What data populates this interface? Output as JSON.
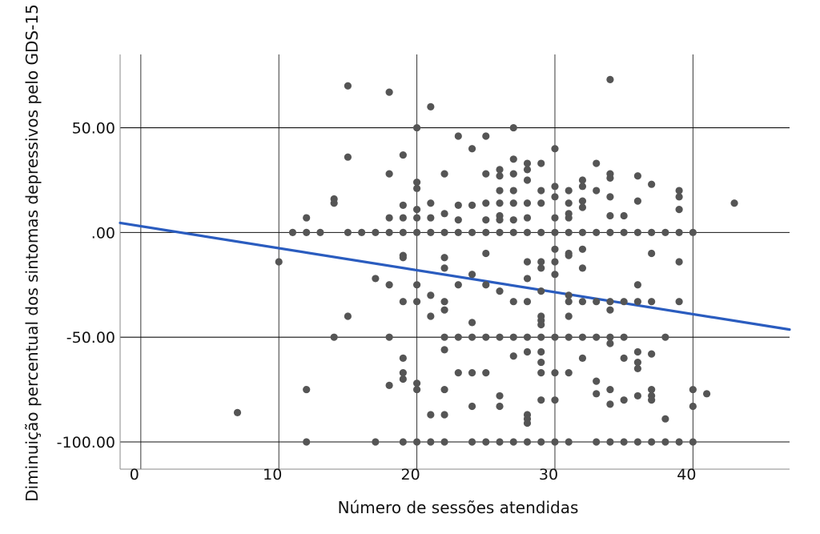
{
  "chart_data": {
    "type": "scatter",
    "title": "",
    "xlabel": "Número de sessões atendidas",
    "ylabel": "Diminuição percentual dos sintomas depressivos pelo GDS-15",
    "xlim": [
      -1.5,
      47
    ],
    "ylim": [
      -113,
      85
    ],
    "x_ticks": [
      0,
      10,
      20,
      30,
      40
    ],
    "x_tick_labels": [
      "0",
      "10",
      "20",
      "30",
      "40"
    ],
    "y_ticks": [
      50,
      0,
      -50,
      -100
    ],
    "y_tick_labels": [
      "50.00",
      ".00",
      "-50.00",
      "-100.00"
    ],
    "grid": true,
    "point_color": "#555555",
    "fit_line": {
      "color": "#2a5cbf",
      "intercept": 3.0,
      "slope": -1.05
    },
    "points": [
      [
        7,
        -86
      ],
      [
        10,
        -14
      ],
      [
        12,
        7
      ],
      [
        11,
        0
      ],
      [
        12,
        0
      ],
      [
        13,
        0
      ],
      [
        12,
        -75
      ],
      [
        12,
        -100
      ],
      [
        14,
        14
      ],
      [
        14,
        16
      ],
      [
        14,
        -50
      ],
      [
        15,
        70
      ],
      [
        15,
        36
      ],
      [
        15,
        0
      ],
      [
        15,
        -40
      ],
      [
        16,
        0
      ],
      [
        17,
        0
      ],
      [
        17,
        -22
      ],
      [
        17,
        -100
      ],
      [
        18,
        67
      ],
      [
        18,
        28
      ],
      [
        18,
        7
      ],
      [
        18,
        0
      ],
      [
        18,
        -25
      ],
      [
        18,
        -50
      ],
      [
        18,
        -73
      ],
      [
        19,
        37
      ],
      [
        19,
        13
      ],
      [
        19,
        7
      ],
      [
        19,
        0
      ],
      [
        19,
        -11
      ],
      [
        19,
        -12
      ],
      [
        19,
        -33
      ],
      [
        19,
        -60
      ],
      [
        19,
        -67
      ],
      [
        19,
        -70
      ],
      [
        19,
        -100
      ],
      [
        20,
        50
      ],
      [
        20,
        24
      ],
      [
        20,
        21
      ],
      [
        20,
        11
      ],
      [
        20,
        7
      ],
      [
        20,
        0
      ],
      [
        20,
        -25
      ],
      [
        20,
        -33
      ],
      [
        20,
        -72
      ],
      [
        20,
        -75
      ],
      [
        20,
        -100
      ],
      [
        21,
        60
      ],
      [
        21,
        14
      ],
      [
        21,
        7
      ],
      [
        21,
        0
      ],
      [
        21,
        -40
      ],
      [
        21,
        -30
      ],
      [
        21,
        -87
      ],
      [
        21,
        -100
      ],
      [
        22,
        28
      ],
      [
        22,
        9
      ],
      [
        22,
        0
      ],
      [
        22,
        -12
      ],
      [
        22,
        -17
      ],
      [
        22,
        -33
      ],
      [
        22,
        -37
      ],
      [
        22,
        -50
      ],
      [
        22,
        -56
      ],
      [
        22,
        -75
      ],
      [
        22,
        -87
      ],
      [
        22,
        -100
      ],
      [
        23,
        46
      ],
      [
        23,
        13
      ],
      [
        23,
        6
      ],
      [
        23,
        0
      ],
      [
        23,
        -25
      ],
      [
        23,
        -50
      ],
      [
        23,
        -67
      ],
      [
        24,
        40
      ],
      [
        24,
        13
      ],
      [
        24,
        0
      ],
      [
        24,
        -20
      ],
      [
        24,
        -43
      ],
      [
        24,
        -50
      ],
      [
        24,
        -67
      ],
      [
        24,
        -83
      ],
      [
        24,
        -100
      ],
      [
        25,
        46
      ],
      [
        25,
        28
      ],
      [
        25,
        14
      ],
      [
        25,
        6
      ],
      [
        25,
        0
      ],
      [
        25,
        -10
      ],
      [
        25,
        -25
      ],
      [
        25,
        -50
      ],
      [
        25,
        -67
      ],
      [
        25,
        -100
      ],
      [
        26,
        30
      ],
      [
        26,
        27
      ],
      [
        26,
        20
      ],
      [
        26,
        14
      ],
      [
        26,
        8
      ],
      [
        26,
        6
      ],
      [
        26,
        0
      ],
      [
        26,
        -28
      ],
      [
        26,
        -50
      ],
      [
        26,
        -78
      ],
      [
        26,
        -83
      ],
      [
        26,
        -100
      ],
      [
        27,
        50
      ],
      [
        27,
        35
      ],
      [
        27,
        28
      ],
      [
        27,
        20
      ],
      [
        27,
        14
      ],
      [
        27,
        6
      ],
      [
        27,
        0
      ],
      [
        27,
        -33
      ],
      [
        27,
        -50
      ],
      [
        27,
        -59
      ],
      [
        27,
        -100
      ],
      [
        28,
        33
      ],
      [
        28,
        30
      ],
      [
        28,
        25
      ],
      [
        28,
        14
      ],
      [
        28,
        7
      ],
      [
        28,
        0
      ],
      [
        28,
        -14
      ],
      [
        28,
        -22
      ],
      [
        28,
        -33
      ],
      [
        28,
        -50
      ],
      [
        28,
        -57
      ],
      [
        28,
        -87
      ],
      [
        28,
        -89
      ],
      [
        28,
        -91
      ],
      [
        28,
        -100
      ],
      [
        29,
        33
      ],
      [
        29,
        20
      ],
      [
        29,
        14
      ],
      [
        29,
        0
      ],
      [
        29,
        -14
      ],
      [
        29,
        -17
      ],
      [
        29,
        -28
      ],
      [
        29,
        -40
      ],
      [
        29,
        -42
      ],
      [
        29,
        -44
      ],
      [
        29,
        -50
      ],
      [
        29,
        -57
      ],
      [
        29,
        -62
      ],
      [
        29,
        -67
      ],
      [
        29,
        -80
      ],
      [
        29,
        -100
      ],
      [
        30,
        40
      ],
      [
        30,
        22
      ],
      [
        30,
        17
      ],
      [
        30,
        7
      ],
      [
        30,
        0
      ],
      [
        30,
        -8
      ],
      [
        30,
        -14
      ],
      [
        30,
        -20
      ],
      [
        30,
        -50
      ],
      [
        30,
        -67
      ],
      [
        30,
        -80
      ],
      [
        30,
        -100
      ],
      [
        31,
        20
      ],
      [
        31,
        14
      ],
      [
        31,
        9
      ],
      [
        31,
        7
      ],
      [
        31,
        0
      ],
      [
        31,
        -10
      ],
      [
        31,
        -11
      ],
      [
        31,
        -30
      ],
      [
        31,
        -33
      ],
      [
        31,
        -40
      ],
      [
        31,
        -50
      ],
      [
        31,
        -67
      ],
      [
        31,
        -100
      ],
      [
        32,
        25
      ],
      [
        32,
        22
      ],
      [
        32,
        15
      ],
      [
        32,
        12
      ],
      [
        32,
        0
      ],
      [
        32,
        -8
      ],
      [
        32,
        -17
      ],
      [
        32,
        -33
      ],
      [
        32,
        -50
      ],
      [
        32,
        -60
      ],
      [
        33,
        33
      ],
      [
        33,
        20
      ],
      [
        33,
        0
      ],
      [
        33,
        -33
      ],
      [
        33,
        -50
      ],
      [
        33,
        -71
      ],
      [
        33,
        -77
      ],
      [
        33,
        -100
      ],
      [
        34,
        73
      ],
      [
        34,
        28
      ],
      [
        34,
        26
      ],
      [
        34,
        17
      ],
      [
        34,
        8
      ],
      [
        34,
        0
      ],
      [
        34,
        -33
      ],
      [
        34,
        -37
      ],
      [
        34,
        -50
      ],
      [
        34,
        -53
      ],
      [
        34,
        -75
      ],
      [
        34,
        -82
      ],
      [
        34,
        -100
      ],
      [
        35,
        8
      ],
      [
        35,
        0
      ],
      [
        35,
        -33
      ],
      [
        35,
        -50
      ],
      [
        35,
        -60
      ],
      [
        35,
        -80
      ],
      [
        35,
        -100
      ],
      [
        36,
        27
      ],
      [
        36,
        15
      ],
      [
        36,
        0
      ],
      [
        36,
        -25
      ],
      [
        36,
        -33
      ],
      [
        36,
        -57
      ],
      [
        36,
        -62
      ],
      [
        36,
        -65
      ],
      [
        36,
        -78
      ],
      [
        36,
        -100
      ],
      [
        37,
        23
      ],
      [
        37,
        0
      ],
      [
        37,
        -10
      ],
      [
        37,
        -33
      ],
      [
        37,
        -58
      ],
      [
        37,
        -75
      ],
      [
        37,
        -78
      ],
      [
        37,
        -80
      ],
      [
        37,
        -100
      ],
      [
        38,
        0
      ],
      [
        38,
        -50
      ],
      [
        38,
        -89
      ],
      [
        38,
        -100
      ],
      [
        39,
        20
      ],
      [
        39,
        17
      ],
      [
        39,
        11
      ],
      [
        39,
        0
      ],
      [
        39,
        -14
      ],
      [
        39,
        -33
      ],
      [
        39,
        -100
      ],
      [
        40,
        0
      ],
      [
        40,
        -75
      ],
      [
        40,
        -83
      ],
      [
        40,
        -100
      ],
      [
        41,
        -77
      ],
      [
        43,
        14
      ]
    ]
  }
}
